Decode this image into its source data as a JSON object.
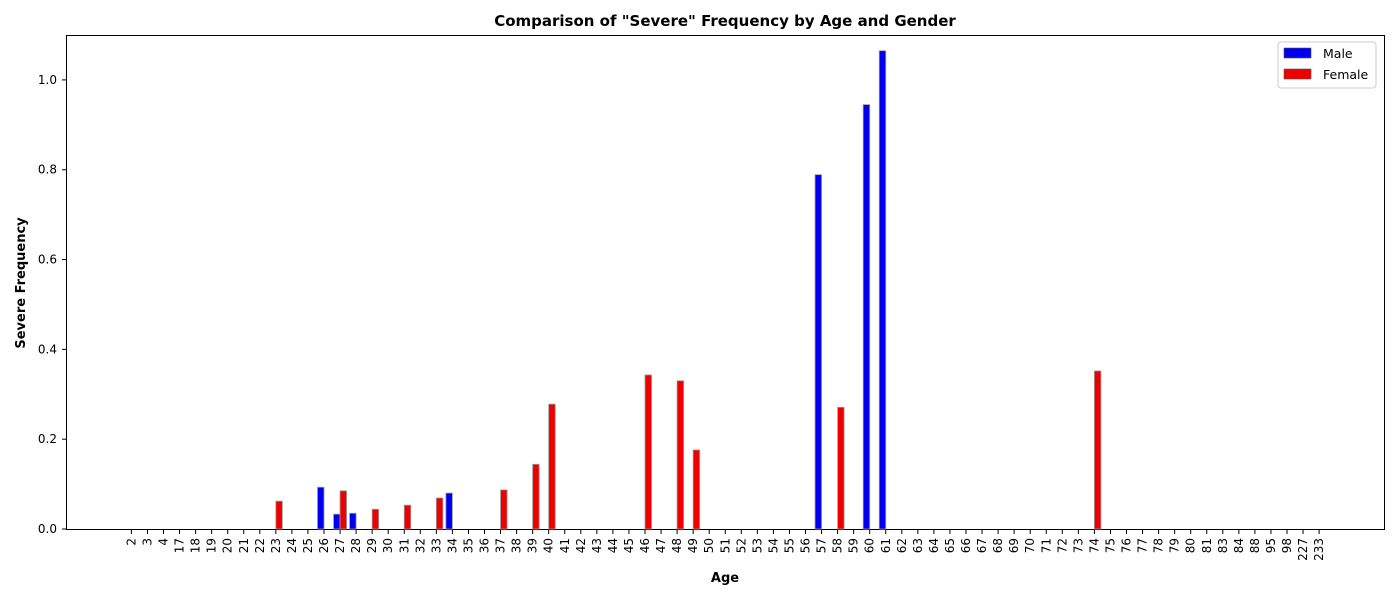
{
  "chart_data": {
    "type": "bar",
    "title": "Comparison of \"Severe\" Frequency by Age and Gender",
    "xlabel": "Age",
    "ylabel": "Severe Frequency",
    "ylim": [
      0,
      1.1
    ],
    "yticks": [
      0.0,
      0.2,
      0.4,
      0.6,
      0.8,
      1.0
    ],
    "ytick_labels": [
      "0.0",
      "0.2",
      "0.4",
      "0.6",
      "0.8",
      "1.0"
    ],
    "grid": false,
    "legend_position": "top-right",
    "categories": [
      "2",
      "3",
      "4",
      "17",
      "18",
      "19",
      "20",
      "21",
      "22",
      "23",
      "24",
      "25",
      "26",
      "27",
      "28",
      "29",
      "30",
      "31",
      "32",
      "33",
      "34",
      "35",
      "36",
      "37",
      "38",
      "39",
      "40",
      "41",
      "42",
      "43",
      "44",
      "45",
      "46",
      "47",
      "48",
      "49",
      "50",
      "51",
      "52",
      "53",
      "54",
      "55",
      "56",
      "57",
      "58",
      "59",
      "60",
      "61",
      "62",
      "63",
      "64",
      "65",
      "66",
      "67",
      "68",
      "69",
      "70",
      "71",
      "72",
      "73",
      "74",
      "75",
      "76",
      "77",
      "78",
      "79",
      "80",
      "81",
      "83",
      "84",
      "88",
      "95",
      "98",
      "227",
      "233"
    ],
    "series": [
      {
        "name": "Male",
        "color": "#0000ee",
        "values": [
          0,
          0,
          0,
          0,
          0,
          0,
          0,
          0,
          0,
          0,
          0,
          0,
          0.093,
          0.033,
          0.035,
          0,
          0,
          0,
          0,
          0,
          0.08,
          0,
          0,
          0,
          0,
          0,
          0,
          0,
          0,
          0,
          0,
          0,
          0,
          0,
          0,
          0,
          0,
          0,
          0,
          0,
          0,
          0,
          0,
          0.789,
          0,
          0,
          0.945,
          1.065,
          0,
          0,
          0,
          0,
          0,
          0,
          0,
          0,
          0,
          0,
          0,
          0,
          0,
          0,
          0,
          0,
          0,
          0,
          0,
          0,
          0,
          0,
          0,
          0,
          0,
          0,
          0
        ]
      },
      {
        "name": "Female",
        "color": "#ee0000",
        "values": [
          0,
          0,
          0,
          0,
          0,
          0,
          0,
          0,
          0,
          0.062,
          0,
          0,
          0,
          0.085,
          0,
          0.044,
          0,
          0.053,
          0,
          0.069,
          0,
          0,
          0,
          0.087,
          0,
          0.144,
          0.278,
          0,
          0,
          0,
          0,
          0,
          0.343,
          0,
          0.33,
          0.176,
          0,
          0,
          0,
          0,
          0,
          0,
          0,
          0,
          0.271,
          0,
          0,
          0,
          0,
          0,
          0,
          0,
          0,
          0,
          0,
          0,
          0,
          0,
          0,
          0,
          0.352,
          0,
          0,
          0,
          0,
          0,
          0,
          0,
          0,
          0,
          0,
          0,
          0,
          0,
          0
        ]
      }
    ]
  }
}
